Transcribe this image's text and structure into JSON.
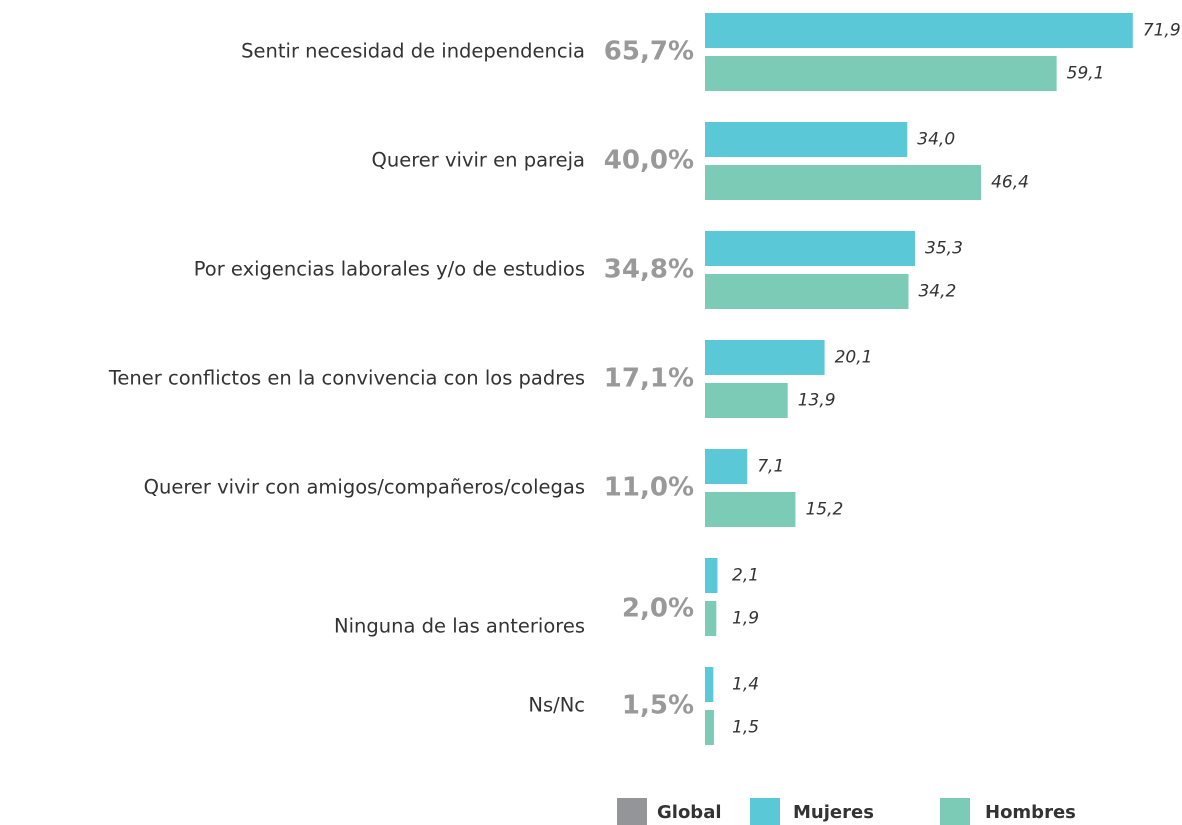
{
  "chart_data": {
    "type": "bar",
    "orientation": "horizontal",
    "categories": [
      "Sentir necesidad de independencia",
      "Querer vivir en pareja",
      "Por exigencias laborales y/o de estudios",
      "Tener conflictos en la convivencia con los padres",
      "Querer vivir con amigos/compañeros/colegas",
      "Ninguna de las anteriores",
      "Ns/Nc"
    ],
    "series": [
      {
        "name": "Global",
        "color": "#939598",
        "values": [
          65.7,
          40.0,
          34.8,
          17.1,
          11.0,
          2.0,
          1.5
        ],
        "value_labels": [
          "65,7%",
          "40,0%",
          "34,8%",
          "17,1%",
          "11,0%",
          "2,0%",
          "1,5%"
        ]
      },
      {
        "name": "Mujeres",
        "color": "#5bc8d8",
        "values": [
          71.9,
          34.0,
          35.3,
          20.1,
          7.1,
          2.1,
          1.4
        ],
        "value_labels": [
          "71,9",
          "34,0",
          "35,3",
          "20,1",
          "7,1",
          "2,1",
          "1,4"
        ]
      },
      {
        "name": "Hombres",
        "color": "#7ccbb7",
        "values": [
          59.1,
          46.4,
          34.2,
          13.9,
          15.2,
          1.9,
          1.5
        ],
        "value_labels": [
          "59,1",
          "46,4",
          "34,2",
          "13,9",
          "15,2",
          "1,9",
          "1,5"
        ]
      }
    ],
    "legend": "bottom"
  }
}
